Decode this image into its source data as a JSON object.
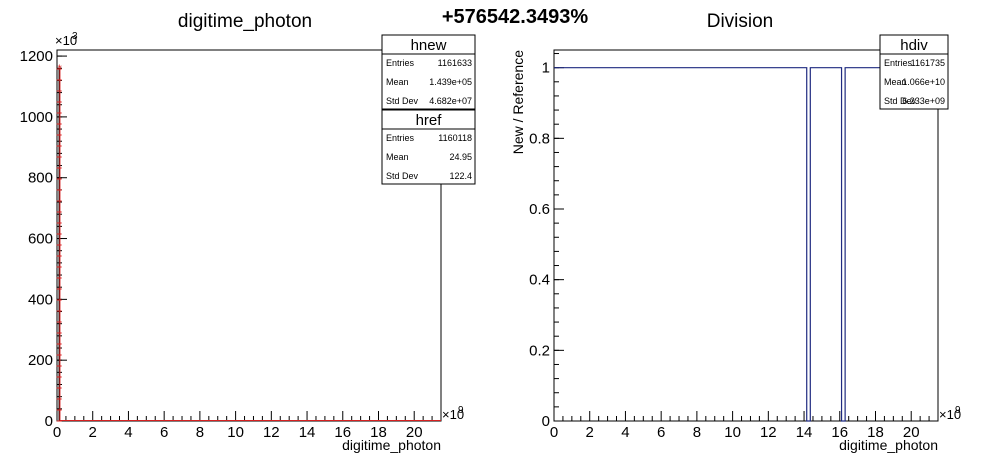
{
  "headline": "+576542.3493%",
  "chart_data": [
    {
      "type": "histogram",
      "title": "digitime_photon",
      "xlabel": "digitime_photon",
      "ylabel": "",
      "xlim": [
        0,
        21.5
      ],
      "ylim": [
        0,
        1220
      ],
      "x_exponent_text": "×10",
      "x_exponent_power": "9",
      "y_exponent_text": "×10",
      "y_exponent_power": "3",
      "x_ticks": [
        0,
        2,
        4,
        6,
        8,
        10,
        12,
        14,
        16,
        18,
        20
      ],
      "y_ticks": [
        0,
        200,
        400,
        600,
        800,
        1000,
        1200
      ],
      "series": [
        {
          "name": "hnew",
          "color": "#000000",
          "points": [
            [
              0.15,
              1160
            ]
          ]
        },
        {
          "name": "href",
          "color": "#d62020",
          "points": [
            [
              0.15,
              1160
            ]
          ]
        }
      ],
      "stat_boxes": [
        {
          "title": "hnew",
          "rows": [
            {
              "label": "Entries",
              "value": "1161633"
            },
            {
              "label": "Mean",
              "value": "1.439e+05"
            },
            {
              "label": "Std Dev",
              "value": "4.682e+07"
            }
          ]
        },
        {
          "title": "href",
          "rows": [
            {
              "label": "Entries",
              "value": "1160118"
            },
            {
              "label": "Mean",
              "value": "24.95"
            },
            {
              "label": "Std Dev",
              "value": "122.4"
            }
          ]
        }
      ]
    },
    {
      "type": "histogram",
      "title": "Division",
      "xlabel": "digitime_photon",
      "ylabel": "New / Reference",
      "xlim": [
        0,
        21.5
      ],
      "ylim": [
        0,
        1.05
      ],
      "x_exponent_text": "×10",
      "x_exponent_power": "9",
      "x_ticks": [
        0,
        2,
        4,
        6,
        8,
        10,
        12,
        14,
        16,
        18,
        20
      ],
      "y_ticks": [
        0,
        0.2,
        0.4,
        0.6,
        0.8,
        1
      ],
      "y_tick_labels": [
        "0",
        "0.2",
        "0.4",
        "0.6",
        "0.8",
        "1"
      ],
      "series": [
        {
          "name": "hdiv",
          "color": "#1f2a80",
          "segments": [
            {
              "x0": 0,
              "x1": 14.15,
              "y": 1
            },
            {
              "x0": 14.15,
              "x1": 14.35,
              "y": 0
            },
            {
              "x0": 14.35,
              "x1": 16.1,
              "y": 1
            },
            {
              "x0": 16.1,
              "x1": 16.3,
              "y": 0
            },
            {
              "x0": 16.3,
              "x1": 21.5,
              "y": 1
            }
          ]
        }
      ],
      "stat_boxes": [
        {
          "title": "hdiv",
          "rows": [
            {
              "label": "Entries",
              "value": "1161735"
            },
            {
              "label": "Mean",
              "value": "1.066e+10"
            },
            {
              "label": "Std Dev",
              "value": "6.233e+09"
            }
          ]
        }
      ]
    }
  ]
}
